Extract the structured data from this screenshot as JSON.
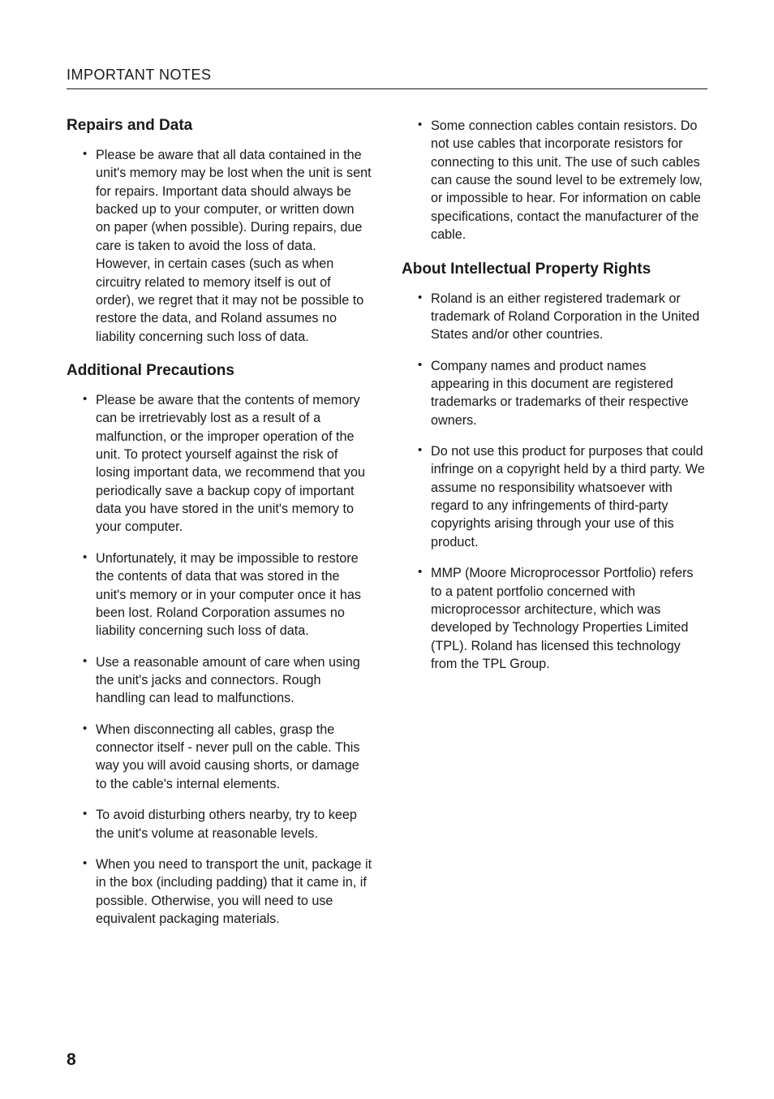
{
  "header": "IMPORTANT NOTES",
  "pageNumber": "8",
  "left": {
    "sections": [
      {
        "heading": "Repairs and Data",
        "items": [
          "Please be aware that all data contained in the unit's memory may be lost when the unit is sent for repairs. Important data should always be backed up to your computer, or written down on paper (when possible). During repairs, due care is taken to avoid the loss of data. However, in certain cases (such as when circuitry related to memory itself is out of order), we regret that it may not be possible to restore the data, and Roland assumes no liability concerning such loss of data."
        ]
      },
      {
        "heading": "Additional Precautions",
        "items": [
          "Please be aware that the contents of memory can be irretrievably lost as a result of a malfunction, or the improper operation of the unit. To protect yourself against the risk of losing important data, we recommend that you periodically save a backup copy of important data you have stored in the unit's memory to your computer.",
          "Unfortunately, it may be impossible to restore the contents of data that was stored in the unit's memory or in your computer once it has been lost. Roland Corporation assumes no liability concerning such loss of data.",
          "Use a reasonable amount of care when using the unit's jacks and connectors. Rough handling can lead to malfunctions.",
          "When disconnecting all cables, grasp the connector itself - never pull on the cable. This way you will avoid causing shorts, or damage to the cable's internal elements.",
          "To avoid disturbing others nearby, try to keep the unit's volume at reasonable levels.",
          "When you need to transport the unit, package it in the box (including padding) that it came in, if possible. Otherwise, you will need to use equivalent packaging materials."
        ]
      }
    ]
  },
  "right": {
    "leadItems": [
      "Some connection cables contain resistors. Do not use cables that incorporate resistors for connecting to this unit. The use of such cables can cause the sound level to be extremely low, or impossible to hear. For information on cable specifications, contact the manufacturer of the cable."
    ],
    "sections": [
      {
        "heading": "About Intellectual Property Rights",
        "items": [
          "Roland is an either registered trademark or trademark of Roland Corporation in the United States and/or other countries.",
          "Company names and product names appearing in this document are registered trademarks or trademarks of their respective owners.",
          "Do not use this product for purposes that could infringe on a copyright held by a third party. We assume no responsibility whatsoever with regard to any infringements of third-party copyrights arising through your use of this product.",
          "MMP (Moore Microprocessor Portfolio) refers to a patent portfolio concerned with microprocessor architecture, which was developed by Technology Properties Limited (TPL). Roland has licensed this technology from the TPL Group."
        ]
      }
    ]
  }
}
